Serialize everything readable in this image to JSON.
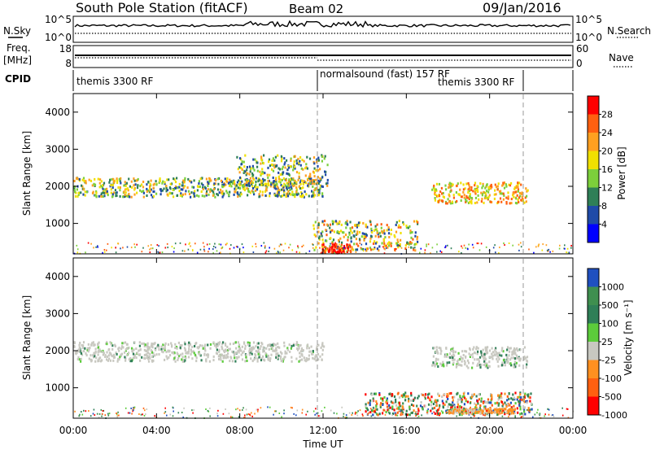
{
  "header": {
    "title": "South Pole Station (fitACF)",
    "beam": "Beam 02",
    "date": "09/Jan/2016"
  },
  "top_panels": {
    "nsky_label": "N.Sky",
    "nsky_ticks": [
      "10^5",
      "10^0"
    ],
    "nsearch_label": "N.Search",
    "nsearch_ticks": [
      "10^5",
      "10^0"
    ],
    "freq_label_1": "Freq.",
    "freq_label_2": "[MHz]",
    "freq_ticks": [
      "18",
      "8"
    ],
    "nave_label": "Nave",
    "nave_ticks": [
      "60",
      "0"
    ],
    "cpid_label": "CPID",
    "cpid_segments": [
      "themis 3300 RF",
      "normalsound (fast) 157 RF",
      "themis 3300 RF"
    ]
  },
  "chart_data": [
    {
      "type": "heatmap",
      "name": "power",
      "ylabel": "Slant Range [km]",
      "ylim": [
        180,
        4500
      ],
      "yticks": [
        1000,
        2000,
        3000,
        4000
      ],
      "xlim": [
        0,
        24
      ],
      "colorbar_label": "Power [dB]",
      "colorbar_ticks": [
        "28",
        "24",
        "20",
        "16",
        "12",
        "8",
        "4"
      ],
      "colors": [
        "#0000ff",
        "#1f4aa8",
        "#2f7f57",
        "#7ccf3b",
        "#f0e000",
        "#ffa020",
        "#ff6010",
        "#ff0000"
      ],
      "echo_bands": [
        {
          "t0": 0.0,
          "t1": 12.0,
          "r": 2000,
          "w": 260,
          "level": "medium"
        },
        {
          "t0": 7.8,
          "t1": 12.2,
          "r": 2450,
          "w": 420,
          "level": "medium"
        },
        {
          "t0": 17.2,
          "t1": 21.8,
          "r": 1850,
          "w": 280,
          "level": "high"
        },
        {
          "t0": 11.5,
          "t1": 16.5,
          "r": 700,
          "w": 400,
          "level": "mixed"
        },
        {
          "t0": 11.9,
          "t1": 13.3,
          "r": 350,
          "w": 120,
          "level": "peak"
        }
      ]
    },
    {
      "type": "heatmap",
      "name": "velocity",
      "ylabel": "Slant Range [km]",
      "xlabel": "Time UT",
      "ylim": [
        180,
        4500
      ],
      "yticks": [
        1000,
        2000,
        3000,
        4000
      ],
      "xlim": [
        0,
        24
      ],
      "xticks": [
        "00:00",
        "04:00",
        "08:00",
        "12:00",
        "16:00",
        "20:00",
        "00:00"
      ],
      "colorbar_label": "Velocity [m s⁻¹]",
      "colorbar_ticks": [
        "1000",
        "500",
        "100",
        "25",
        "-25",
        "-100",
        "-500",
        "-1000"
      ],
      "colors": [
        "#2050c0",
        "#3f8f4f",
        "#2f7f57",
        "#5ccc3b",
        "#c8c8c0",
        "#ff9020",
        "#ff6010",
        "#ff0000"
      ],
      "echo_bands": [
        {
          "t0": 0.0,
          "t1": 12.0,
          "r": 2000,
          "w": 260,
          "level": "gray"
        },
        {
          "t0": 17.2,
          "t1": 21.8,
          "r": 1850,
          "w": 280,
          "level": "gray"
        },
        {
          "t0": 14.0,
          "t1": 22.0,
          "r": 600,
          "w": 300,
          "level": "mixed"
        },
        {
          "t0": 18.0,
          "t1": 21.2,
          "r": 400,
          "w": 60,
          "level": "orange"
        }
      ]
    }
  ],
  "colors": {
    "dashed_markers": "#999999"
  }
}
